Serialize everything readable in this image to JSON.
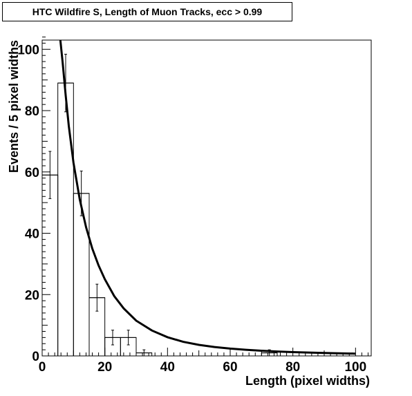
{
  "chart_data": {
    "type": "bar",
    "title": "HTC Wildfire S, Length of Muon Tracks, ecc > 0.99",
    "xlabel": "Length (pixel widths)",
    "ylabel": "Events / 5 pixel widths",
    "xlim": [
      0,
      105
    ],
    "ylim": [
      0,
      103
    ],
    "xticks": [
      0,
      20,
      40,
      60,
      80,
      100
    ],
    "yticks": [
      0,
      20,
      40,
      60,
      80,
      100
    ],
    "bin_width": 5,
    "bins": [
      {
        "x": 2.5,
        "count": 59,
        "err": 7.7
      },
      {
        "x": 7.5,
        "count": 89,
        "err": 9.4
      },
      {
        "x": 12.5,
        "count": 53,
        "err": 7.3
      },
      {
        "x": 17.5,
        "count": 19,
        "err": 4.4
      },
      {
        "x": 22.5,
        "count": 6,
        "err": 2.4
      },
      {
        "x": 27.5,
        "count": 6,
        "err": 2.4
      },
      {
        "x": 32.5,
        "count": 1,
        "err": 1.0
      },
      {
        "x": 72.5,
        "count": 1,
        "err": 1.0
      }
    ],
    "fit_curve": {
      "x": [
        5.8,
        6.5,
        7.5,
        8.5,
        10,
        12,
        14,
        16,
        18,
        20,
        23,
        26,
        30,
        35,
        40,
        45,
        50,
        55,
        60,
        65,
        70,
        75,
        80,
        85,
        90,
        95,
        100
      ],
      "y": [
        103,
        96,
        85,
        75,
        63,
        51,
        42,
        35,
        29.5,
        25,
        19.5,
        15.5,
        11.5,
        8.3,
        6.1,
        4.6,
        3.6,
        2.9,
        2.4,
        2.0,
        1.7,
        1.45,
        1.25,
        1.1,
        0.95,
        0.85,
        0.75
      ]
    }
  }
}
